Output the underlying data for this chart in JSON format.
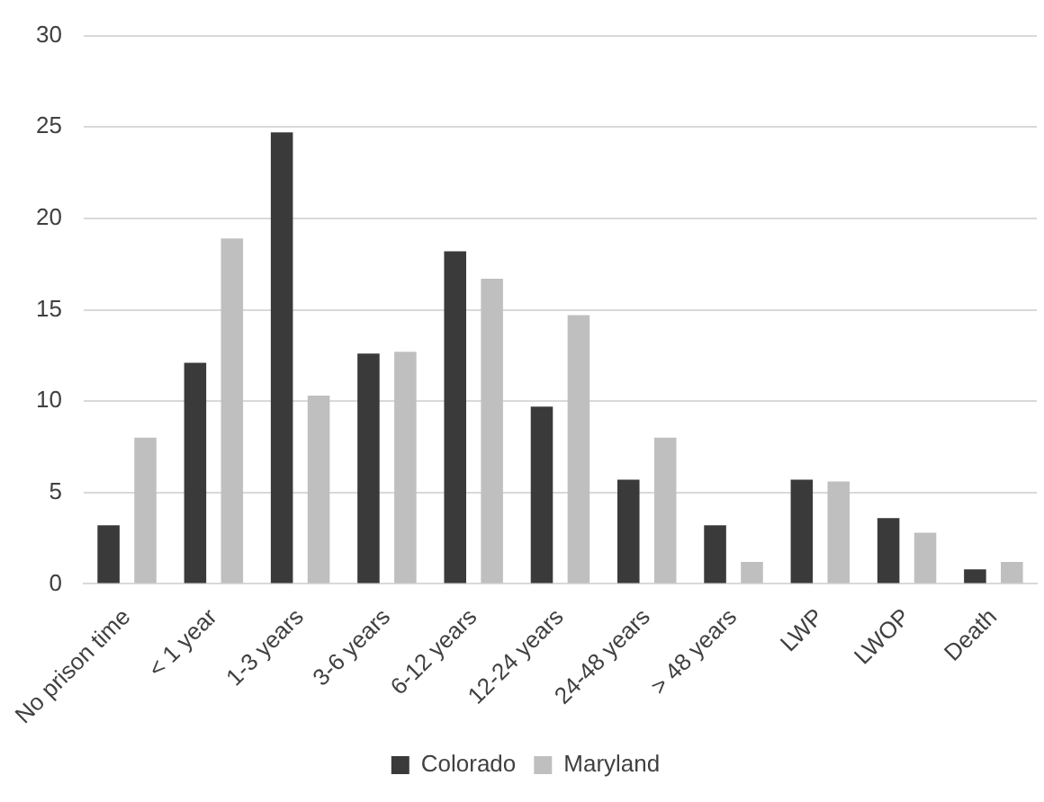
{
  "chart_data": {
    "type": "bar",
    "categories": [
      "No prison time",
      "< 1 year",
      "1-3 years",
      "3-6 years",
      "6-12 years",
      "12-24 years",
      "24-48 years",
      "> 48 years",
      "LWP",
      "LWOP",
      "Death"
    ],
    "series": [
      {
        "name": "Colorado",
        "color": "#3a3a3a",
        "values": [
          3.2,
          12.1,
          24.7,
          12.6,
          18.2,
          9.7,
          5.7,
          3.2,
          5.7,
          3.6,
          0.8
        ]
      },
      {
        "name": "Maryland",
        "color": "#bfbfbf",
        "values": [
          8.0,
          18.9,
          10.3,
          12.7,
          16.7,
          14.7,
          8.0,
          1.2,
          5.6,
          2.8,
          1.2
        ]
      }
    ],
    "ylim": [
      0,
      30
    ],
    "yticks": [
      0,
      5,
      10,
      15,
      20,
      25,
      30
    ],
    "grid": "y",
    "legend": "bottom"
  }
}
